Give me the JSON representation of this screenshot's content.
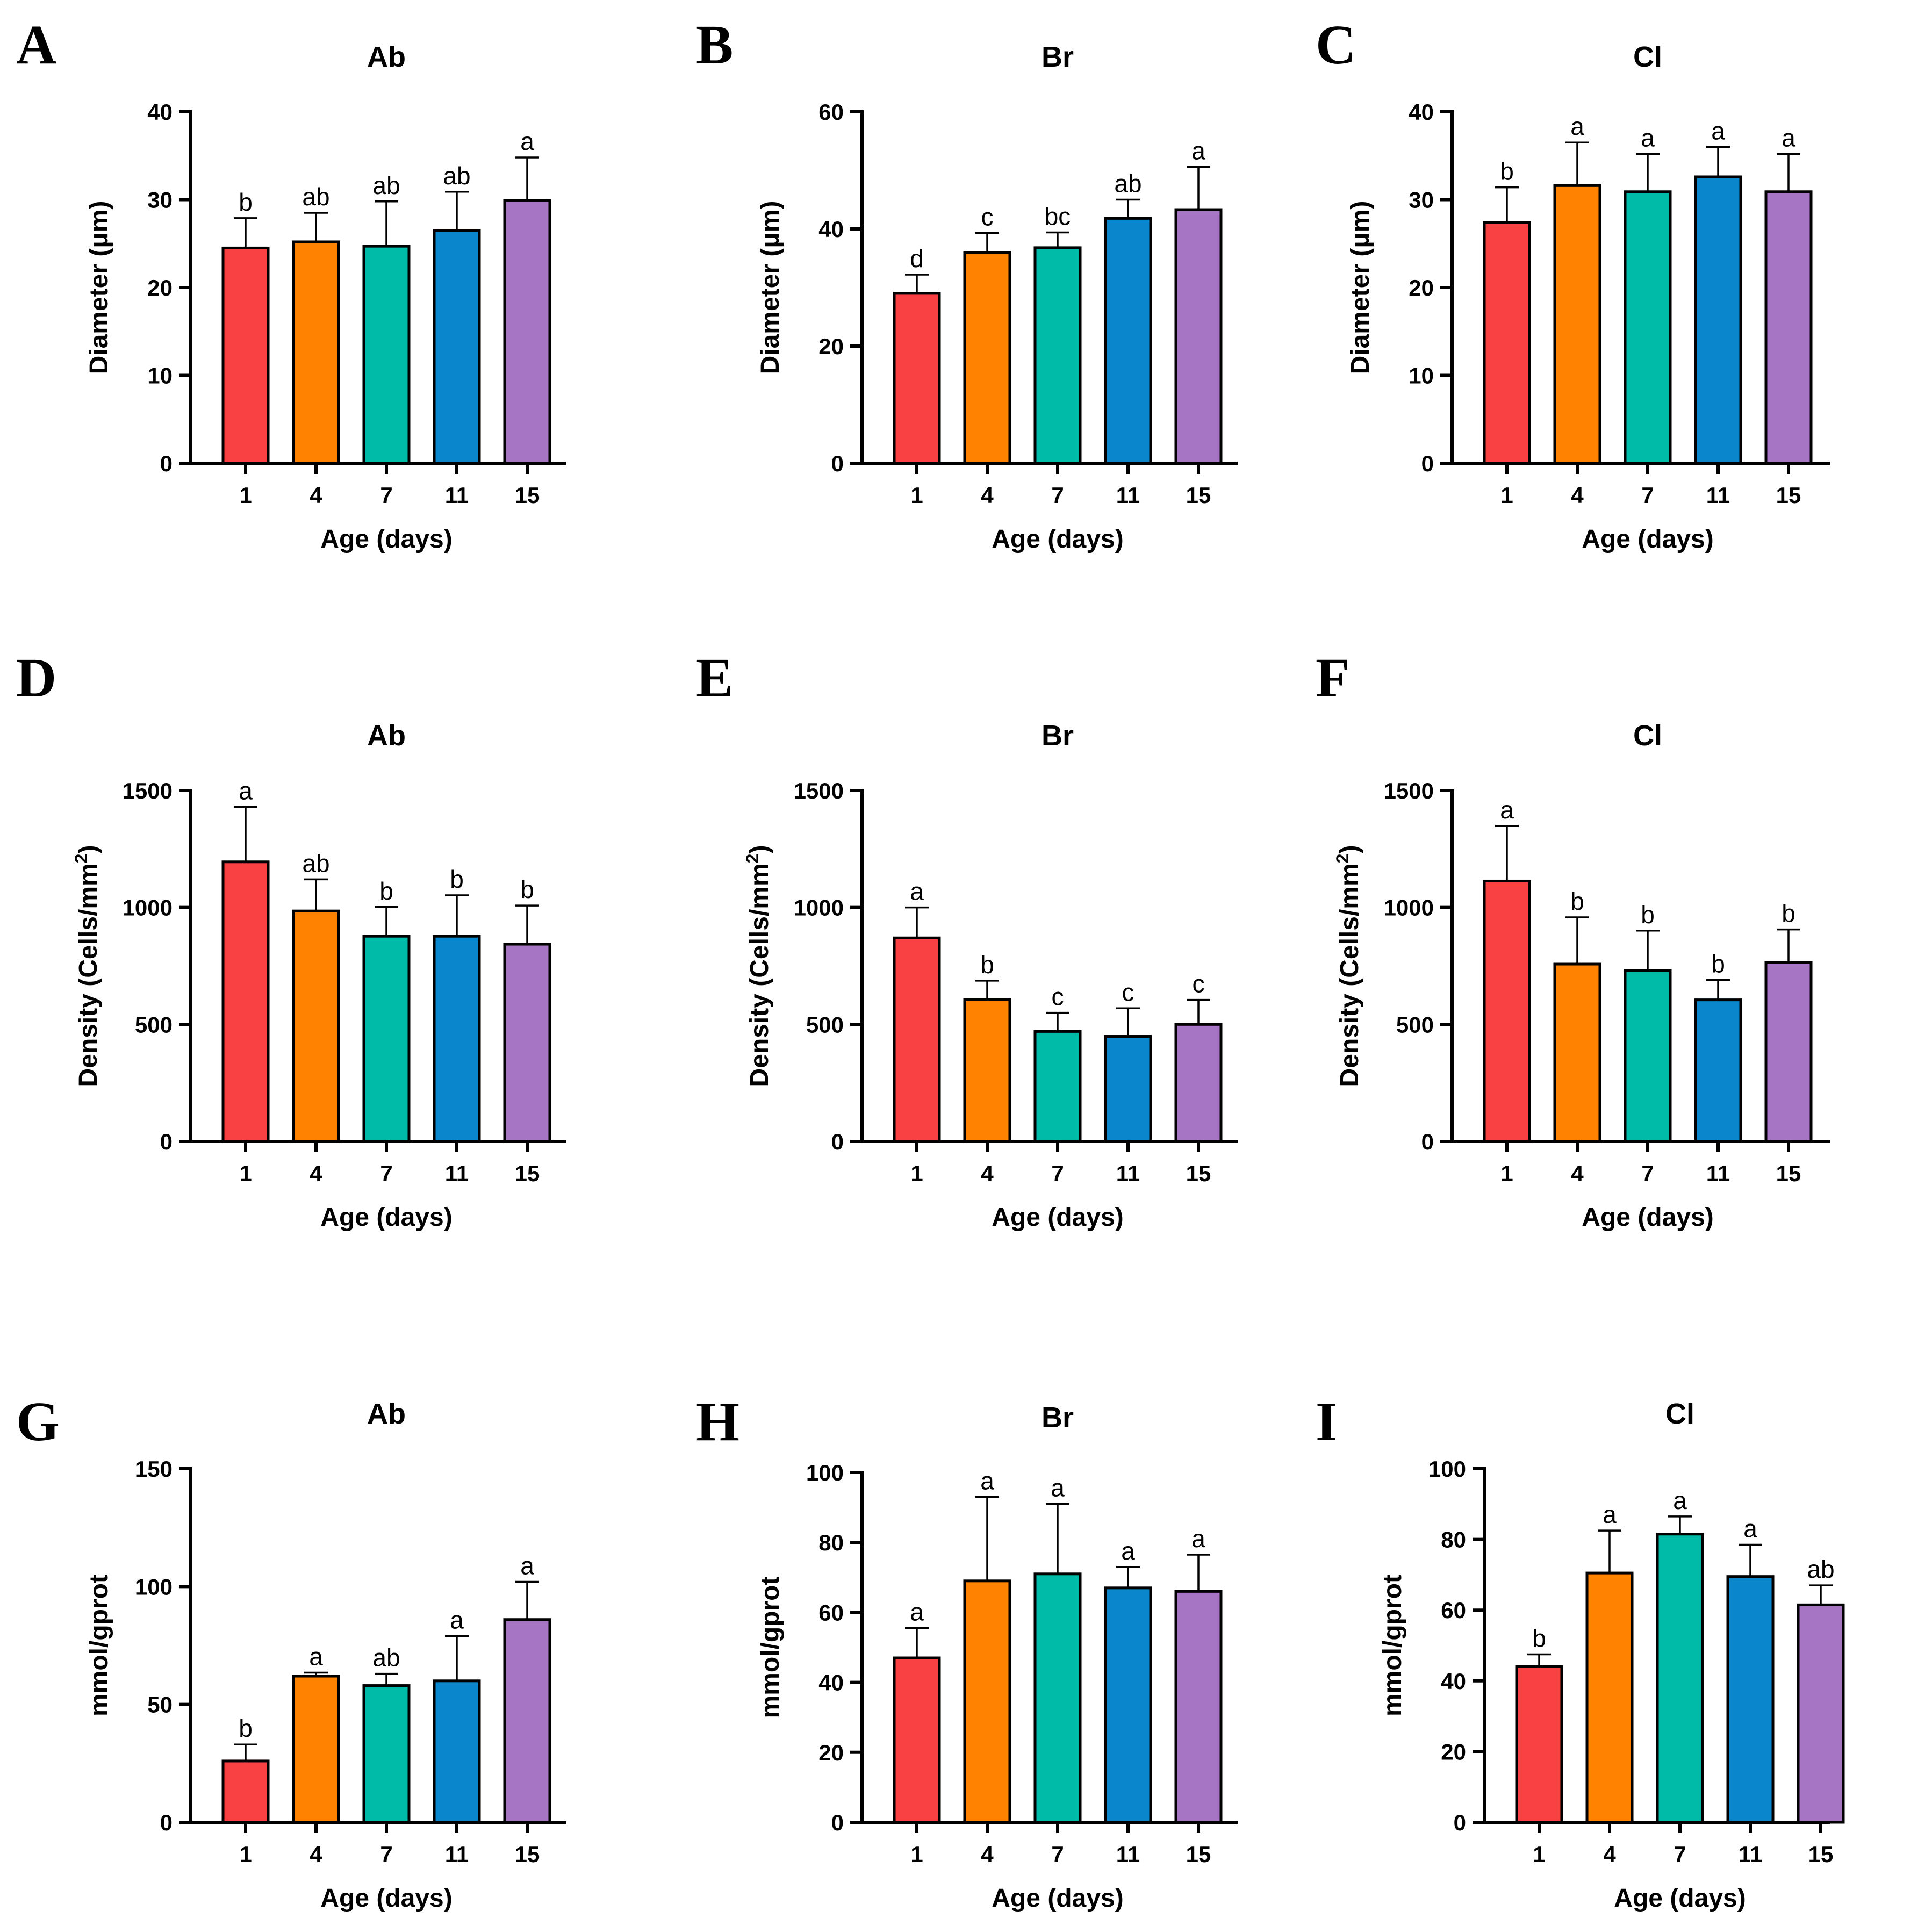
{
  "chart_data": [
    {
      "panel": "A",
      "title": "Ab",
      "type": "bar",
      "categories": [
        "1",
        "4",
        "7",
        "11",
        "15"
      ],
      "values": [
        24.5,
        25.2,
        24.7,
        26.5,
        29.9
      ],
      "errors": [
        3.4,
        3.3,
        5.1,
        4.4,
        4.9
      ],
      "sig": [
        "b",
        "ab",
        "ab",
        "ab",
        "a"
      ],
      "xlabel": "Age (days)",
      "ylabel": "Diameter (μm)",
      "ylim": [
        0,
        40
      ],
      "yticks": [
        0,
        10,
        20,
        30,
        40
      ]
    },
    {
      "panel": "B",
      "title": "Br",
      "type": "bar",
      "categories": [
        "1",
        "4",
        "7",
        "11",
        "15"
      ],
      "values": [
        29.0,
        36.0,
        36.8,
        41.8,
        43.3
      ],
      "errors": [
        3.2,
        3.3,
        2.6,
        3.2,
        7.3
      ],
      "sig": [
        "d",
        "c",
        "bc",
        "ab",
        "a"
      ],
      "xlabel": "Age (days)",
      "ylabel": "Diameter (μm)",
      "ylim": [
        0,
        60
      ],
      "yticks": [
        0,
        20,
        40,
        60
      ]
    },
    {
      "panel": "C",
      "title": "Cl",
      "type": "bar",
      "categories": [
        "1",
        "4",
        "7",
        "11",
        "15"
      ],
      "values": [
        27.4,
        31.6,
        30.9,
        32.6,
        30.9
      ],
      "errors": [
        4.0,
        4.9,
        4.3,
        3.4,
        4.3
      ],
      "sig": [
        "b",
        "a",
        "a",
        "a",
        "a"
      ],
      "xlabel": "Age (days)",
      "ylabel": "Diameter (μm)",
      "ylim": [
        0,
        40
      ],
      "yticks": [
        0,
        10,
        20,
        30,
        40
      ]
    },
    {
      "panel": "D",
      "title": "Ab",
      "type": "bar",
      "categories": [
        "1",
        "4",
        "7",
        "11",
        "15"
      ],
      "values": [
        1195,
        985,
        877,
        877,
        843
      ],
      "errors": [
        235,
        135,
        125,
        175,
        165
      ],
      "sig": [
        "a",
        "ab",
        "b",
        "b",
        "b"
      ],
      "xlabel": "Age (days)",
      "ylabel": "Density (Cells/mm",
      "ylabel_sup": "2",
      "ylabel_end": ")",
      "ylim": [
        0,
        1500
      ],
      "yticks": [
        0,
        500,
        1000,
        1500
      ]
    },
    {
      "panel": "E",
      "title": "Br",
      "type": "bar",
      "categories": [
        "1",
        "4",
        "7",
        "11",
        "15"
      ],
      "values": [
        870,
        607,
        470,
        449,
        500
      ],
      "errors": [
        130,
        80,
        80,
        120,
        105
      ],
      "sig": [
        "a",
        "b",
        "c",
        "c",
        "c"
      ],
      "xlabel": "Age (days)",
      "ylabel": "Density (Cells/mm",
      "ylabel_sup": "2",
      "ylabel_end": ")",
      "ylim": [
        0,
        1500
      ],
      "yticks": [
        0,
        500,
        1000,
        1500
      ]
    },
    {
      "panel": "F",
      "title": "Cl",
      "type": "bar",
      "categories": [
        "1",
        "4",
        "7",
        "11",
        "15"
      ],
      "values": [
        1113,
        758,
        731,
        605,
        766
      ],
      "errors": [
        235,
        200,
        170,
        85,
        140
      ],
      "sig": [
        "a",
        "b",
        "b",
        "b",
        "b"
      ],
      "xlabel": "Age (days)",
      "ylabel": "Density (Cells/mm",
      "ylabel_sup": "2",
      "ylabel_end": ")",
      "ylim": [
        0,
        1500
      ],
      "yticks": [
        0,
        500,
        1000,
        1500
      ]
    },
    {
      "panel": "G",
      "title": "Ab",
      "type": "bar",
      "categories": [
        "1",
        "4",
        "7",
        "11",
        "15"
      ],
      "values": [
        26,
        62,
        58,
        60,
        86
      ],
      "errors": [
        7,
        1.5,
        5,
        19,
        16
      ],
      "sig": [
        "b",
        "a",
        "ab",
        "a",
        "a"
      ],
      "xlabel": "Age (days)",
      "ylabel": "mmol/gprot",
      "ylim": [
        0,
        150
      ],
      "yticks": [
        0,
        50,
        100,
        150
      ]
    },
    {
      "panel": "H",
      "title": "Br",
      "type": "bar",
      "categories": [
        "1",
        "4",
        "7",
        "11",
        "15"
      ],
      "values": [
        47,
        69,
        71,
        67,
        66
      ],
      "errors": [
        8.5,
        24,
        20,
        6,
        10.5
      ],
      "sig": [
        "a",
        "a",
        "a",
        "a",
        "a"
      ],
      "xlabel": "Age (days)",
      "ylabel": "mmol/gprot",
      "ylim": [
        0,
        100
      ],
      "yticks": [
        0,
        20,
        40,
        60,
        80,
        100
      ]
    },
    {
      "panel": "I",
      "title": "Cl",
      "type": "bar",
      "categories": [
        "1",
        "4",
        "7",
        "11",
        "15"
      ],
      "values": [
        44,
        70.5,
        81.5,
        69.5,
        61.5
      ],
      "errors": [
        3.5,
        12,
        5,
        9,
        5.5
      ],
      "sig": [
        "b",
        "a",
        "a",
        "a",
        "ab"
      ],
      "xlabel": "Age (days)",
      "ylabel": "mmol/gprot",
      "ylim": [
        0,
        100
      ],
      "yticks": [
        0,
        20,
        40,
        60,
        80,
        100
      ]
    }
  ],
  "colors": [
    "#f94144",
    "#ff8200",
    "#00bba7",
    "#0a87cc",
    "#a675c4"
  ]
}
